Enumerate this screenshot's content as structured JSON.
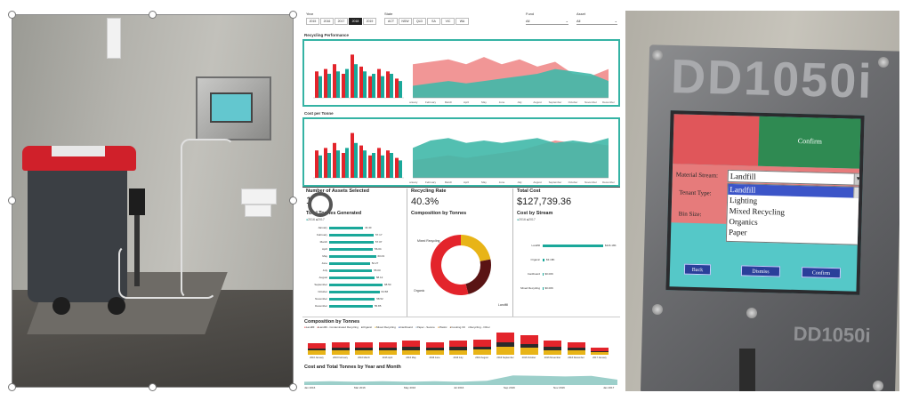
{
  "dashboard": {
    "slicers": {
      "year_label": "Year",
      "years": [
        "2015",
        "2016",
        "2017",
        "2018",
        "2019"
      ],
      "selected_year_index": 3,
      "state_label": "State",
      "states": [
        "ACT",
        "NSW",
        "QLD",
        "SA",
        "VIC",
        "WA"
      ],
      "fund_label": "Fund",
      "fund_value": "All",
      "asset_label": "Asset",
      "asset_value": "All"
    },
    "recycling_performance": {
      "title": "Recycling Performance",
      "legend": [
        "2016",
        "2017"
      ],
      "area_legend": [
        "2016",
        "2017"
      ],
      "months": [
        "January",
        "February",
        "March",
        "April",
        "May",
        "June",
        "July",
        "August",
        "September",
        "October",
        "November",
        "December"
      ]
    },
    "cost_per_tonne": {
      "title": "Cost per Tonne"
    },
    "kpis": {
      "assets_title": "Number of Assets Selected",
      "assets_value": "1",
      "rate_title": "Recycling Rate",
      "rate_value": "40.3%",
      "cost_title": "Total Cost",
      "cost_value": "$127,739.36"
    },
    "total_tonnes": {
      "title": "Total Tonnes Generated",
      "legend": [
        "2016",
        "2017"
      ],
      "months": [
        "January",
        "February",
        "March",
        "April",
        "May",
        "June",
        "July",
        "August",
        "September",
        "October",
        "November",
        "December"
      ],
      "values": [
        "43.40",
        "57.17",
        "57.07",
        "56.04",
        "60.03",
        "52.27",
        "55.00",
        "58.12",
        "68.50",
        "64.58",
        "58.52",
        "55.85"
      ],
      "values_num": [
        43.4,
        57.17,
        57.07,
        56.04,
        60.03,
        52.27,
        55.0,
        58.12,
        68.5,
        64.58,
        58.52,
        55.85
      ]
    },
    "composition_donut": {
      "title": "Composition by Tonnes",
      "labels": [
        "Mixed Recycling",
        "Organic",
        "Landfill"
      ],
      "values": [
        0.22,
        0.24,
        0.54
      ],
      "colors": [
        "#e8b417",
        "#5a1414",
        "#e3242b"
      ]
    },
    "cost_by_stream": {
      "title": "Cost by Stream",
      "legend": [
        "2016",
        "2017"
      ],
      "streams": [
        "Landfill",
        "Organic",
        "Cardboard",
        "Mixed Recycling"
      ],
      "value_labels": [
        "$116.18K",
        "$3.18K",
        "$0.00K",
        "$0.00K"
      ]
    },
    "composition_stack": {
      "title": "Composition by Tonnes",
      "legend": [
        "Landfill",
        "Landfill - Contaminated Recycling",
        "Organic",
        "Mixed Recycling",
        "Cardboard",
        "Paper - Secure",
        "Plastic",
        "Cooking Oil",
        "Recycling - Other"
      ],
      "colors": [
        "#e3242b",
        "#8b1a1a",
        "#2a2a2a",
        "#e8b417",
        "#1f3f9b",
        "#a6c8e0",
        "#f4a340",
        "#7d4b1d",
        "#9b9b9b"
      ],
      "months": [
        "2016 January",
        "2016 February",
        "2016 March",
        "2016 April",
        "2016 May",
        "2016 June",
        "2016 July",
        "2016 August",
        "2016 September",
        "2016 October",
        "2016 November",
        "2016 December",
        "2017 January"
      ]
    },
    "cost_tonnes": {
      "title": "Cost and Total Tonnes by Year and Month",
      "axis": [
        "Jan 2016",
        "Mar 2016",
        "May 2016",
        "Jul 2016",
        "Sep 2016",
        "Nov 2016",
        "Jan 2017"
      ]
    }
  },
  "device": {
    "top_button": "Confirm",
    "label_stream": "Material Stream:",
    "label_type": "Tenant Type:",
    "label_bin": "Bin Size:",
    "combo_value": "Landfill",
    "list_items": [
      "Landfill",
      "Lighting",
      "Mixed Recycling",
      "Organics",
      "Paper"
    ],
    "highlighted_index": 0,
    "btn_back": "Back",
    "btn_dismiss": "Dismiss",
    "btn_confirm": "Confirm",
    "model_text": "DD1050i"
  }
}
